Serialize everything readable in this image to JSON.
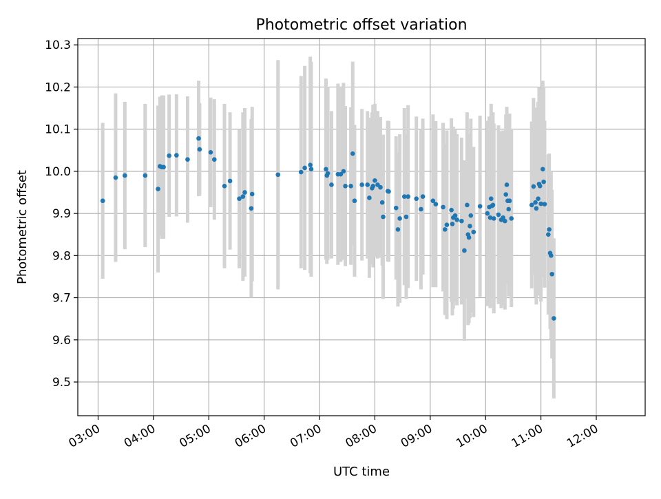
{
  "chart_data": {
    "type": "scatter",
    "title": "Photometric offset variation",
    "xlabel": "UTC time",
    "ylabel": "Photometric offset",
    "x_ticks": [
      "03:00",
      "04:00",
      "05:00",
      "06:00",
      "07:00",
      "08:00",
      "09:00",
      "10:00",
      "11:00",
      "12:00"
    ],
    "y_ticks": [
      "9.5",
      "9.6",
      "9.7",
      "9.8",
      "9.9",
      "10.0",
      "10.1",
      "10.2",
      "10.3"
    ],
    "xlim": [
      "02:38",
      "12:53"
    ],
    "ylim": [
      9.42,
      10.315
    ],
    "grid": true,
    "colors": {
      "point": "#1f77b4",
      "errorbar": "#d3d3d3",
      "grid": "#b0b0b0"
    },
    "series": [
      {
        "points": [
          [
            "03:05",
            9.93,
            0.185
          ],
          [
            "03:19",
            9.985,
            0.2
          ],
          [
            "03:29",
            9.99,
            0.175
          ],
          [
            "03:51",
            9.99,
            0.17
          ],
          [
            "04:05",
            9.958,
            0.198
          ],
          [
            "04:07",
            10.012,
            0.165
          ],
          [
            "04:09",
            10.01,
            0.17
          ],
          [
            "04:11",
            10.01,
            0.17
          ],
          [
            "04:17",
            10.037,
            0.145
          ],
          [
            "04:25",
            10.038,
            0.145
          ],
          [
            "04:37",
            10.028,
            0.15
          ],
          [
            "04:49",
            10.078,
            0.137
          ],
          [
            "04:50",
            10.052,
            0.11
          ],
          [
            "05:02",
            10.045,
            0.13
          ],
          [
            "05:06",
            10.028,
            0.143
          ],
          [
            "05:17",
            9.965,
            0.195
          ],
          [
            "05:23",
            9.977,
            0.163
          ],
          [
            "05:33",
            9.935,
            0.165
          ],
          [
            "05:37",
            9.94,
            0.2
          ],
          [
            "05:39",
            9.95,
            0.2
          ],
          [
            "05:46",
            9.912,
            0.212
          ],
          [
            "05:47",
            9.946,
            0.207
          ],
          [
            "06:15",
            9.992,
            0.272
          ],
          [
            "06:40",
            9.998,
            0.228
          ],
          [
            "06:44",
            10.008,
            0.242
          ],
          [
            "06:50",
            10.015,
            0.257
          ],
          [
            "06:51",
            10.005,
            0.255
          ],
          [
            "07:07",
            10.005,
            0.215
          ],
          [
            "07:08",
            9.99,
            0.21
          ],
          [
            "07:09",
            9.995,
            0.205
          ],
          [
            "07:13",
            9.968,
            0.175
          ],
          [
            "07:20",
            9.993,
            0.215
          ],
          [
            "07:23",
            9.993,
            0.208
          ],
          [
            "07:26",
            10.0,
            0.21
          ],
          [
            "07:28",
            9.965,
            0.19
          ],
          [
            "07:34",
            9.965,
            0.187
          ],
          [
            "07:36",
            10.042,
            0.218
          ],
          [
            "07:38",
            9.93,
            0.18
          ],
          [
            "07:46",
            9.968,
            0.18
          ],
          [
            "07:52",
            9.968,
            0.175
          ],
          [
            "07:54",
            9.937,
            0.19
          ],
          [
            "07:57",
            9.96,
            0.18
          ],
          [
            "07:58",
            9.965,
            0.193
          ],
          [
            "08:00",
            9.978,
            0.182
          ],
          [
            "08:03",
            9.968,
            0.175
          ],
          [
            "08:06",
            9.962,
            0.167
          ],
          [
            "08:08",
            9.926,
            0.15
          ],
          [
            "08:09",
            9.892,
            0.195
          ],
          [
            "08:14",
            9.953,
            0.167
          ],
          [
            "08:15",
            9.952,
            0.167
          ],
          [
            "08:23",
            9.913,
            0.17
          ],
          [
            "08:25",
            9.862,
            0.183
          ],
          [
            "08:27",
            9.888,
            0.2
          ],
          [
            "08:32",
            9.94,
            0.21
          ],
          [
            "08:34",
            9.892,
            0.195
          ],
          [
            "08:36",
            9.94,
            0.217
          ],
          [
            "08:45",
            9.935,
            0.195
          ],
          [
            "08:50",
            9.91,
            0.19
          ],
          [
            "08:52",
            9.94,
            0.185
          ],
          [
            "09:03",
            9.93,
            0.205
          ],
          [
            "09:06",
            9.922,
            0.197
          ],
          [
            "09:14",
            9.915,
            0.2
          ],
          [
            "09:16",
            9.862,
            0.203
          ],
          [
            "09:18",
            9.873,
            0.224
          ],
          [
            "09:23",
            9.908,
            0.218
          ],
          [
            "09:24",
            9.875,
            0.217
          ],
          [
            "09:25",
            9.89,
            0.216
          ],
          [
            "09:27",
            9.895,
            0.205
          ],
          [
            "09:29",
            9.885,
            0.203
          ],
          [
            "09:34",
            9.882,
            0.198
          ],
          [
            "09:37",
            9.812,
            0.214
          ],
          [
            "09:40",
            9.92,
            0.22
          ],
          [
            "09:41",
            9.85,
            0.215
          ],
          [
            "09:42",
            9.843,
            0.203
          ],
          [
            "09:43",
            9.87,
            0.218
          ],
          [
            "09:44",
            9.895,
            0.23
          ],
          [
            "09:47",
            9.856,
            0.202
          ],
          [
            "09:54",
            9.917,
            0.215
          ],
          [
            "10:02",
            9.9,
            0.22
          ],
          [
            "10:04",
            9.915,
            0.215
          ],
          [
            "10:05",
            9.89,
            0.215
          ],
          [
            "10:06",
            9.935,
            0.225
          ],
          [
            "10:07",
            9.918,
            0.22
          ],
          [
            "10:08",
            9.92,
            0.22
          ],
          [
            "10:09",
            9.888,
            0.225
          ],
          [
            "10:14",
            9.897,
            0.212
          ],
          [
            "10:17",
            9.885,
            0.21
          ],
          [
            "10:19",
            9.89,
            0.207
          ],
          [
            "10:21",
            9.882,
            0.21
          ],
          [
            "10:22",
            9.945,
            0.19
          ],
          [
            "10:23",
            9.968,
            0.185
          ],
          [
            "10:24",
            9.93,
            0.197
          ],
          [
            "10:25",
            9.91,
            0.207
          ],
          [
            "10:26",
            9.93,
            0.207
          ],
          [
            "10:28",
            9.888,
            0.21
          ],
          [
            "10:50",
            9.92,
            0.198
          ],
          [
            "10:52",
            9.964,
            0.21
          ],
          [
            "10:54",
            9.926,
            0.225
          ],
          [
            "10:55",
            9.912,
            0.228
          ],
          [
            "10:57",
            9.935,
            0.23
          ],
          [
            "10:58",
            9.97,
            0.23
          ],
          [
            "10:59",
            9.965,
            0.23
          ],
          [
            "11:00",
            9.923,
            0.232
          ],
          [
            "11:02",
            10.005,
            0.21
          ],
          [
            "11:03",
            9.975,
            0.225
          ],
          [
            "11:04",
            9.922,
            0.198
          ],
          [
            "11:08",
            9.85,
            0.19
          ],
          [
            "11:09",
            9.862,
            0.18
          ],
          [
            "11:10",
            9.806,
            0.18
          ],
          [
            "11:11",
            9.8,
            0.2
          ],
          [
            "11:12",
            9.756,
            0.2
          ],
          [
            "11:14",
            9.651,
            0.19
          ]
        ]
      }
    ]
  }
}
